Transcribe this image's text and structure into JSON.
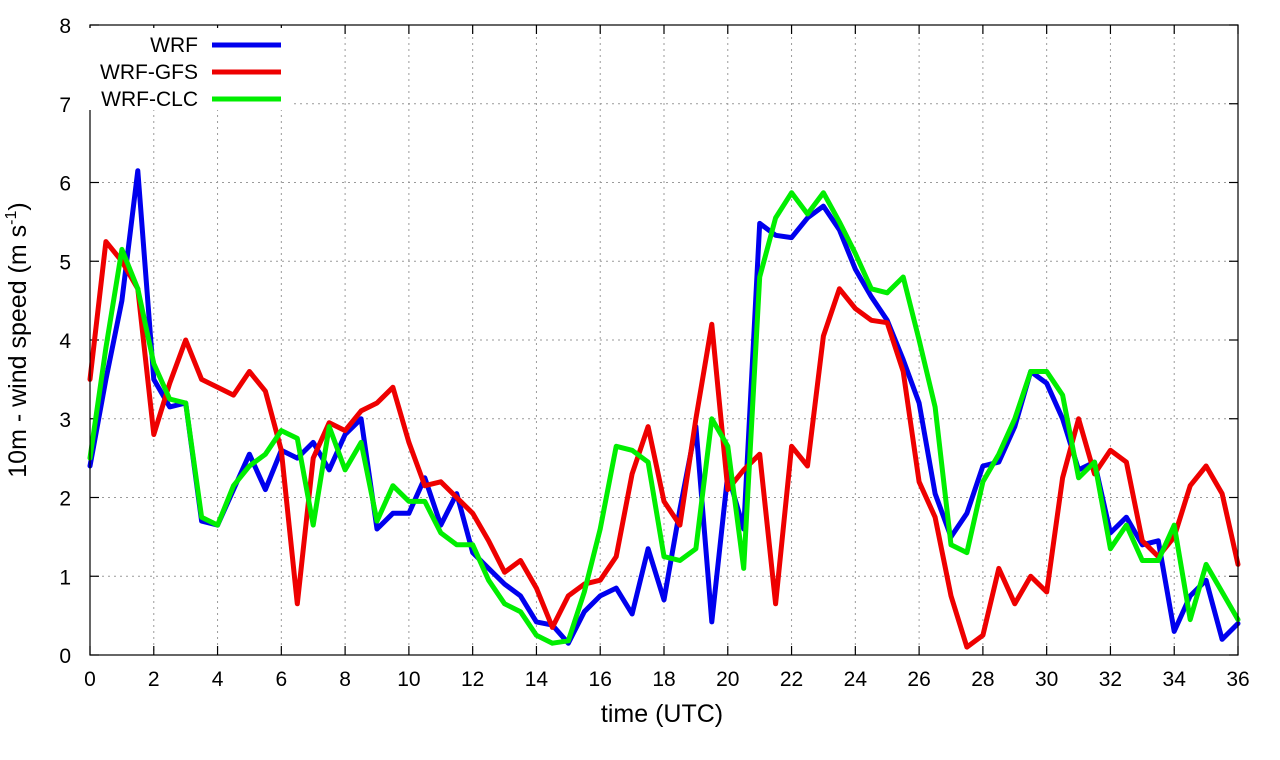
{
  "chart_data": {
    "type": "line",
    "title": "",
    "xlabel": "time (UTC)",
    "ylabel_main": "10m - wind speed  (m s",
    "ylabel_sup": "-1",
    "ylabel_close": ")",
    "xlim": [
      0,
      36
    ],
    "ylim": [
      0,
      8
    ],
    "xticks": [
      0,
      2,
      4,
      6,
      8,
      10,
      12,
      14,
      16,
      18,
      20,
      22,
      24,
      26,
      28,
      30,
      32,
      34,
      36
    ],
    "yticks": [
      0,
      1,
      2,
      3,
      4,
      5,
      6,
      7,
      8
    ],
    "grid": true,
    "legend_position": "top-left",
    "x": [
      0,
      0.5,
      1,
      1.5,
      2,
      2.5,
      3,
      3.5,
      4,
      4.5,
      5,
      5.5,
      6,
      6.5,
      7,
      7.5,
      8,
      8.5,
      9,
      9.5,
      10,
      10.5,
      11,
      11.5,
      12,
      12.5,
      13,
      13.5,
      14,
      14.5,
      15,
      15.5,
      16,
      16.5,
      17,
      17.5,
      18,
      18.5,
      19,
      19.5,
      20,
      20.5,
      21,
      21.5,
      22,
      22.5,
      23,
      23.5,
      24,
      24.5,
      25,
      25.5,
      26,
      26.5,
      27,
      27.5,
      28,
      28.5,
      29,
      29.5,
      30,
      30.5,
      31,
      31.5,
      32,
      32.5,
      33,
      33.5,
      34,
      34.5,
      35,
      35.5,
      36
    ],
    "series": [
      {
        "name": "WRF",
        "color": "#0000ee",
        "values": [
          2.4,
          3.5,
          4.5,
          6.15,
          3.5,
          3.15,
          3.2,
          1.7,
          1.65,
          2.1,
          2.55,
          2.1,
          2.6,
          2.5,
          2.7,
          2.35,
          2.8,
          3.0,
          1.6,
          1.8,
          1.8,
          2.25,
          1.65,
          2.05,
          1.3,
          1.1,
          0.9,
          0.75,
          0.42,
          0.38,
          0.15,
          0.55,
          0.75,
          0.85,
          0.52,
          1.35,
          0.7,
          1.85,
          2.9,
          0.42,
          2.3,
          1.6,
          5.48,
          5.33,
          5.3,
          5.55,
          5.7,
          5.4,
          4.9,
          4.55,
          4.25,
          3.75,
          3.2,
          2.05,
          1.5,
          1.8,
          2.4,
          2.45,
          2.9,
          3.6,
          3.45,
          3.0,
          2.35,
          2.45,
          1.55,
          1.75,
          1.4,
          1.45,
          0.3,
          0.75,
          0.95,
          0.2,
          0.4
        ]
      },
      {
        "name": "WRF-GFS",
        "color": "#ee0000",
        "values": [
          3.5,
          5.25,
          5.0,
          4.65,
          2.8,
          3.45,
          4.0,
          3.5,
          3.4,
          3.3,
          3.6,
          3.35,
          2.6,
          0.65,
          2.5,
          2.95,
          2.85,
          3.1,
          3.2,
          3.4,
          2.7,
          2.15,
          2.2,
          2.0,
          1.8,
          1.45,
          1.05,
          1.2,
          0.85,
          0.35,
          0.75,
          0.9,
          0.95,
          1.25,
          2.3,
          2.9,
          1.95,
          1.65,
          3.0,
          4.2,
          2.1,
          2.35,
          2.55,
          0.65,
          2.65,
          2.4,
          4.05,
          4.65,
          4.4,
          4.25,
          4.22,
          3.6,
          2.2,
          1.75,
          0.75,
          0.1,
          0.25,
          1.1,
          0.65,
          1.0,
          0.8,
          2.25,
          3.0,
          2.3,
          2.6,
          2.45,
          1.45,
          1.25,
          1.5,
          2.15,
          2.4,
          2.05,
          1.15
        ]
      },
      {
        "name": "WRF-CLC",
        "color": "#00ee00",
        "values": [
          2.5,
          3.9,
          5.15,
          4.65,
          3.7,
          3.25,
          3.2,
          1.75,
          1.65,
          2.15,
          2.4,
          2.55,
          2.85,
          2.75,
          1.65,
          2.9,
          2.35,
          2.7,
          1.7,
          2.15,
          1.95,
          1.95,
          1.55,
          1.4,
          1.4,
          0.95,
          0.65,
          0.55,
          0.25,
          0.15,
          0.18,
          0.8,
          1.6,
          2.65,
          2.6,
          2.45,
          1.25,
          1.2,
          1.35,
          3.0,
          2.65,
          1.1,
          4.8,
          5.55,
          5.87,
          5.6,
          5.87,
          5.5,
          5.1,
          4.65,
          4.6,
          4.8,
          4.0,
          3.15,
          1.4,
          1.3,
          2.2,
          2.55,
          3.0,
          3.6,
          3.6,
          3.3,
          2.25,
          2.45,
          1.35,
          1.65,
          1.2,
          1.2,
          1.65,
          0.45,
          1.15,
          0.8,
          0.45
        ]
      }
    ]
  }
}
